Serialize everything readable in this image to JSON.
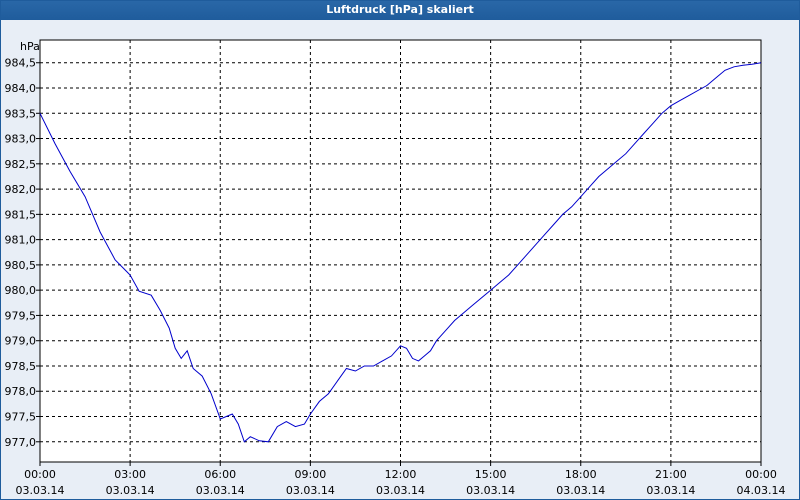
{
  "window": {
    "title": "Luftdruck [hPa] skaliert"
  },
  "chart_data": {
    "type": "line",
    "title": "Luftdruck [hPa] skaliert",
    "ylabel": "hPa",
    "xlabel": "",
    "xlim_hours": [
      0,
      24
    ],
    "ylim": [
      976.6,
      984.95
    ],
    "yticks": [
      "977,0",
      "977,5",
      "978,0",
      "978,5",
      "979,0",
      "979,5",
      "980,0",
      "980,5",
      "981,0",
      "981,5",
      "982,0",
      "982,5",
      "983,0",
      "983,5",
      "984,0",
      "984,5"
    ],
    "ytick_values": [
      977.0,
      977.5,
      978.0,
      978.5,
      979.0,
      979.5,
      980.0,
      980.5,
      981.0,
      981.5,
      982.0,
      982.5,
      983.0,
      983.5,
      984.0,
      984.5
    ],
    "xticks": [
      {
        "time": "00:00",
        "date": "03.03.14"
      },
      {
        "time": "03:00",
        "date": "03.03.14"
      },
      {
        "time": "06:00",
        "date": "03.03.14"
      },
      {
        "time": "09:00",
        "date": "03.03.14"
      },
      {
        "time": "12:00",
        "date": "03.03.14"
      },
      {
        "time": "15:00",
        "date": "03.03.14"
      },
      {
        "time": "18:00",
        "date": "03.03.14"
      },
      {
        "time": "21:00",
        "date": "03.03.14"
      },
      {
        "time": "00:00",
        "date": "04.03.14"
      }
    ],
    "grid": true,
    "grid_style": "dashed",
    "series": [
      {
        "color": "#0000cc",
        "x": [
          0.0,
          0.5,
          1.0,
          1.5,
          2.0,
          2.5,
          3.0,
          3.3,
          3.7,
          4.0,
          4.3,
          4.5,
          4.7,
          4.9,
          5.1,
          5.4,
          5.7,
          6.0,
          6.2,
          6.4,
          6.6,
          6.8,
          7.0,
          7.3,
          7.6,
          7.9,
          8.2,
          8.5,
          8.8,
          9.0,
          9.3,
          9.6,
          9.9,
          10.2,
          10.5,
          10.8,
          11.1,
          11.4,
          11.7,
          12.0,
          12.2,
          12.4,
          12.6,
          12.8,
          13.0,
          13.2,
          13.5,
          13.8,
          14.1,
          14.4,
          14.7,
          15.0,
          15.3,
          15.6,
          15.9,
          16.2,
          16.5,
          16.8,
          17.1,
          17.4,
          17.7,
          18.0,
          18.3,
          18.6,
          18.9,
          19.2,
          19.5,
          19.8,
          20.1,
          20.4,
          20.7,
          21.0,
          21.3,
          21.6,
          21.9,
          22.2,
          22.5,
          22.8,
          23.1,
          23.4,
          23.7,
          24.0
        ],
        "values": [
          983.5,
          982.9,
          982.35,
          981.85,
          981.15,
          980.6,
          980.3,
          979.98,
          979.9,
          979.6,
          979.25,
          978.85,
          978.65,
          978.8,
          978.45,
          978.3,
          977.95,
          977.45,
          977.5,
          977.55,
          977.35,
          977.0,
          977.1,
          977.02,
          977.0,
          977.3,
          977.4,
          977.3,
          977.35,
          977.55,
          977.8,
          977.95,
          978.2,
          978.45,
          978.4,
          978.5,
          978.5,
          978.6,
          978.7,
          978.9,
          978.85,
          978.65,
          978.6,
          978.7,
          978.8,
          979.0,
          979.2,
          979.4,
          979.55,
          979.7,
          979.85,
          980.0,
          980.15,
          980.3,
          980.5,
          980.7,
          980.9,
          981.1,
          981.3,
          981.5,
          981.65,
          981.85,
          982.05,
          982.25,
          982.4,
          982.55,
          982.7,
          982.9,
          983.1,
          983.3,
          983.5,
          983.65,
          983.75,
          983.85,
          983.95,
          984.05,
          984.2,
          984.35,
          984.42,
          984.45,
          984.47,
          984.5
        ]
      }
    ]
  }
}
